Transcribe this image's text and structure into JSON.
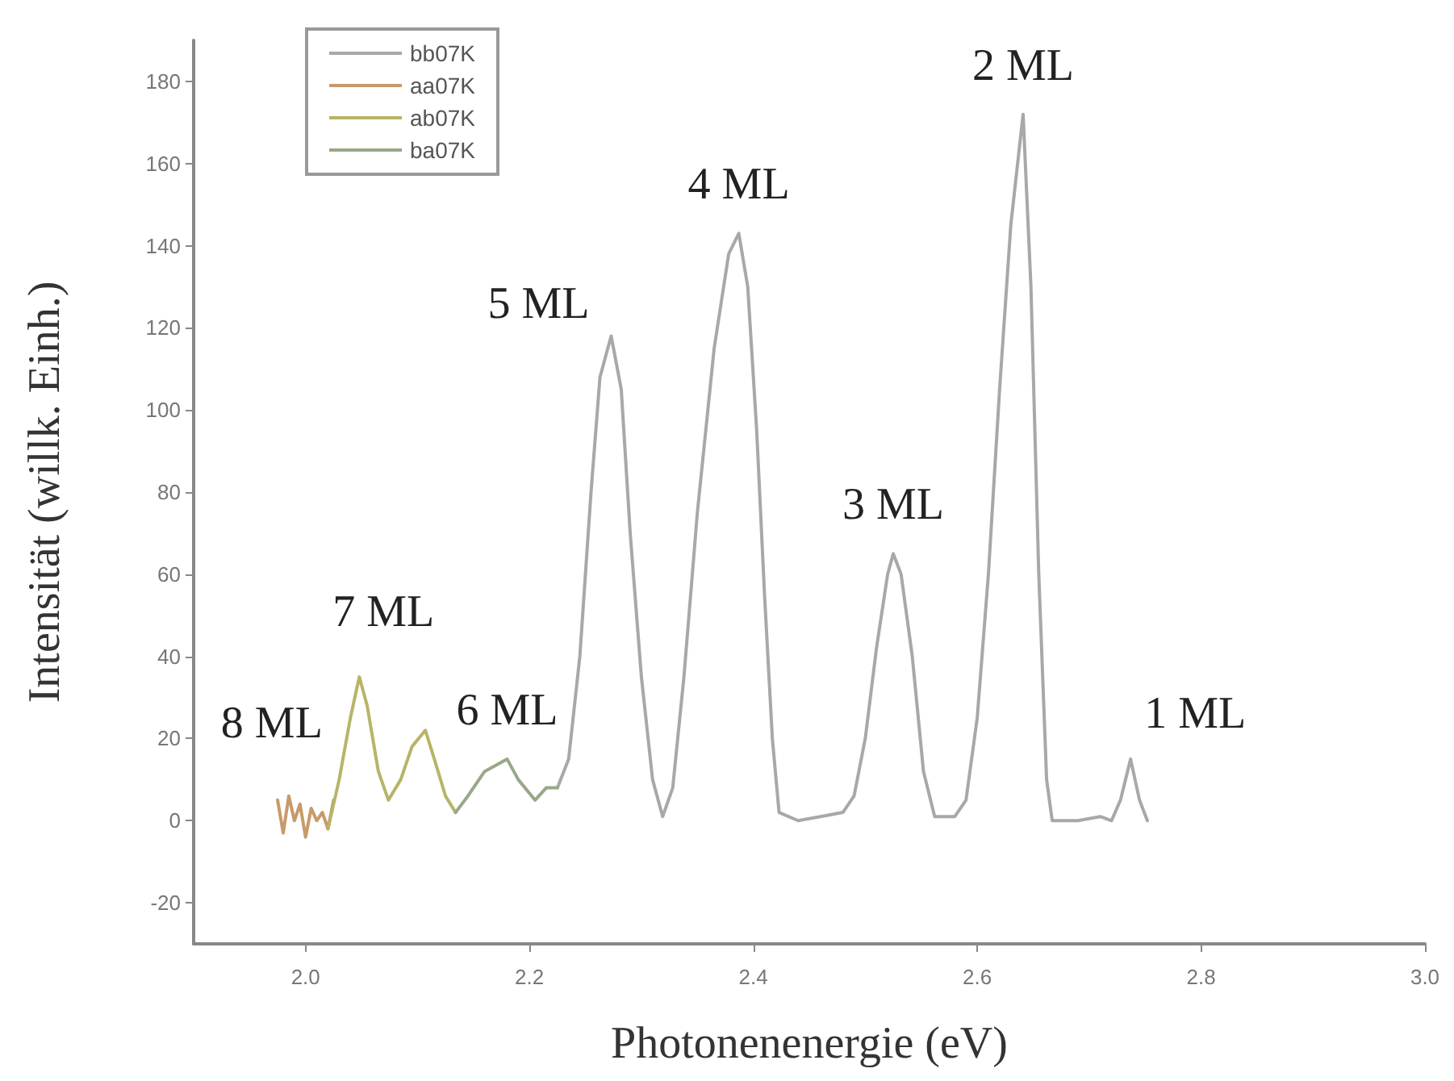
{
  "chart_data": {
    "type": "line",
    "xlabel": "Photonenenergie (eV)",
    "ylabel": "Intensität (willk. Einh.)",
    "xlim": [
      1.9,
      3.0
    ],
    "xticks": [
      {
        "value": 2.0,
        "label": "2.0"
      },
      {
        "value": 2.2,
        "label": "2.2"
      },
      {
        "value": 2.4,
        "label": "2.4"
      },
      {
        "value": 2.6,
        "label": "2.6"
      },
      {
        "value": 2.8,
        "label": "2.8"
      },
      {
        "value": 3.0,
        "label": "3.0"
      }
    ],
    "ylim": [
      -30,
      190
    ],
    "yticks": [
      -20,
      0,
      20,
      40,
      60,
      80,
      100,
      120,
      140,
      160,
      180
    ],
    "grid": false,
    "legend": "top left",
    "marker": "none",
    "line_style": "solid",
    "series": [
      {
        "name": "bb07K",
        "color": "#a8a8a8",
        "x": [
          2.225,
          2.235,
          2.245,
          2.255,
          2.263,
          2.273,
          2.282,
          2.29,
          2.3,
          2.31,
          2.319,
          2.328,
          2.338,
          2.35,
          2.365,
          2.378,
          2.387,
          2.395,
          2.403,
          2.41,
          2.417,
          2.423,
          2.44,
          2.46,
          2.48,
          2.49,
          2.5,
          2.51,
          2.52,
          2.525,
          2.532,
          2.542,
          2.552,
          2.562,
          2.58,
          2.59,
          2.6,
          2.61,
          2.62,
          2.63,
          2.641,
          2.648,
          2.655,
          2.662,
          2.667,
          2.69,
          2.71,
          2.72,
          2.728,
          2.737,
          2.745,
          2.752
        ],
        "values": [
          8,
          15,
          40,
          80,
          108,
          118,
          105,
          70,
          35,
          10,
          1,
          8,
          35,
          75,
          115,
          138,
          143,
          130,
          95,
          55,
          20,
          2,
          0,
          1,
          2,
          6,
          20,
          42,
          60,
          65,
          60,
          40,
          12,
          1,
          1,
          5,
          25,
          60,
          105,
          145,
          172,
          130,
          60,
          10,
          0,
          0,
          1,
          0,
          5,
          15,
          5,
          0
        ]
      },
      {
        "name": "aa07K",
        "color": "#c89a6a",
        "x": [
          1.975,
          1.98,
          1.985,
          1.99,
          1.995,
          2.0,
          2.005,
          2.01,
          2.015,
          2.02,
          2.025
        ],
        "values": [
          5,
          -3,
          6,
          0,
          4,
          -4,
          3,
          0,
          2,
          -2,
          5
        ]
      },
      {
        "name": "ab07K",
        "color": "#b8b468",
        "x": [
          2.02,
          2.03,
          2.04,
          2.048,
          2.055,
          2.065,
          2.074,
          2.085,
          2.095,
          2.107,
          2.115,
          2.125,
          2.134
        ],
        "values": [
          -2,
          10,
          25,
          35,
          28,
          12,
          5,
          10,
          18,
          22,
          15,
          6,
          2
        ]
      },
      {
        "name": "ba07K",
        "color": "#98a888",
        "x": [
          2.134,
          2.145,
          2.16,
          2.18,
          2.19,
          2.205,
          2.215,
          2.225
        ],
        "values": [
          2,
          6,
          12,
          15,
          10,
          5,
          8,
          8
        ]
      }
    ],
    "annotations": [
      {
        "text": "8 ML",
        "x": 1.99,
        "y": 6
      },
      {
        "text": "7 ML",
        "x": 2.048,
        "y": 35
      },
      {
        "text": "6 ML",
        "x": 2.18,
        "y": 15
      },
      {
        "text": "5 ML",
        "x": 2.273,
        "y": 118
      },
      {
        "text": "4 ML",
        "x": 2.387,
        "y": 143
      },
      {
        "text": "3 ML",
        "x": 2.525,
        "y": 65
      },
      {
        "text": "2 ML",
        "x": 2.641,
        "y": 172
      },
      {
        "text": "1 ML",
        "x": 2.737,
        "y": 15
      }
    ]
  }
}
